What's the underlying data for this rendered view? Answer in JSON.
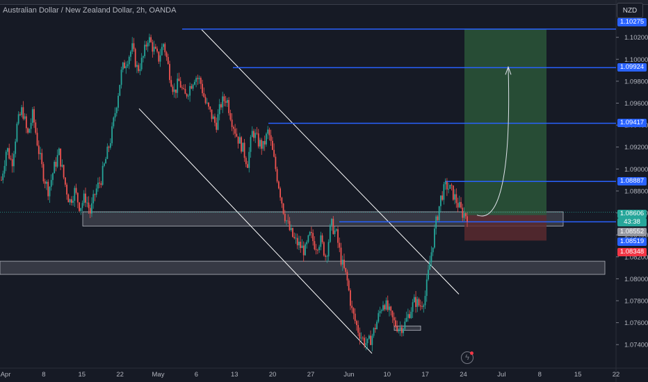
{
  "header": {
    "title": "Australian Dollar / New Zealand Dollar, 2h, OANDA"
  },
  "toolbar": {
    "currency_label": "NZD",
    "flash_icon": "lightning-icon"
  },
  "colors": {
    "background": "#161a25",
    "up": "#26a69a",
    "down": "#ef5350",
    "level_line": "#2962ff",
    "channel": "#ffffff",
    "target_zone": "#2d5e3b",
    "stop_zone": "#5e2a30"
  },
  "chart_data": {
    "type": "candlestick",
    "symbol": "AUDNZD",
    "timeframe": "2h",
    "x_ticks": [
      "Apr",
      "8",
      "15",
      "22",
      "May",
      "6",
      "13",
      "20",
      "27",
      "Jun",
      "10",
      "17",
      "24",
      "Jul",
      "8",
      "15",
      "22"
    ],
    "y_ticks": [
      "1.07400",
      "1.07600",
      "1.07800",
      "1.08000",
      "1.08200",
      "1.08400",
      "1.08600",
      "1.08800",
      "1.09000",
      "1.09200",
      "1.09400",
      "1.09600",
      "1.09800",
      "1.10000",
      "1.10200"
    ],
    "ylim": [
      1.073,
      1.1035
    ],
    "price_labels": [
      {
        "value": "1.10275",
        "kind": "level"
      },
      {
        "value": "1.09924",
        "kind": "level"
      },
      {
        "value": "1.09417",
        "kind": "level"
      },
      {
        "value": "1.08887",
        "kind": "level"
      },
      {
        "value": "1.08606",
        "kind": "last"
      },
      {
        "value": "43:38",
        "kind": "countdown"
      },
      {
        "value": "1.08552",
        "kind": "bid"
      },
      {
        "value": "1.08519",
        "kind": "level"
      },
      {
        "value": "1.08348",
        "kind": "stop"
      }
    ],
    "horizontal_levels": [
      1.10275,
      1.09924,
      1.09417,
      1.08887,
      1.08519
    ],
    "zones": [
      {
        "name": "support-zone-upper",
        "y1": 1.0848,
        "y2": 1.0861
      },
      {
        "name": "support-zone-lower",
        "y1": 1.0804,
        "y2": 1.0816
      },
      {
        "name": "double-bottom-box",
        "y1": 1.0753,
        "y2": 1.0757
      }
    ],
    "position": {
      "entry": 1.0858,
      "target": 1.10275,
      "stop": 1.08348
    },
    "price_path": [
      1.089,
      1.092,
      1.0905,
      1.094,
      1.0955,
      1.093,
      1.095,
      1.092,
      1.0895,
      1.088,
      1.09,
      1.0915,
      1.089,
      1.087,
      1.088,
      1.0865,
      1.0875,
      1.086,
      1.088,
      1.089,
      1.091,
      1.093,
      1.096,
      1.099,
      1.1,
      1.101,
      1.099,
      1.1,
      1.102,
      1.101,
      1.1,
      1.1015,
      1.099,
      1.097,
      1.098,
      1.0965,
      1.0975,
      1.0985,
      1.098,
      1.096,
      1.095,
      1.094,
      1.096,
      1.0965,
      1.0945,
      1.093,
      1.092,
      1.0905,
      1.0935,
      1.0925,
      1.092,
      1.0935,
      1.091,
      1.0885,
      1.086,
      1.0845,
      1.0835,
      1.083,
      1.0825,
      1.084,
      1.083,
      1.0835,
      1.082,
      1.085,
      1.084,
      1.0815,
      1.08,
      1.077,
      1.0755,
      1.0745,
      1.074,
      1.075,
      1.0765,
      1.078,
      1.077,
      1.076,
      1.0755,
      1.0758,
      1.077,
      1.078,
      1.0775,
      1.0785,
      1.082,
      1.085,
      1.0875,
      1.0885,
      1.088,
      1.087,
      1.086,
      1.0858
    ],
    "annotations": [
      {
        "type": "arrow",
        "from": 1.0858,
        "to": 1.0992
      }
    ]
  }
}
